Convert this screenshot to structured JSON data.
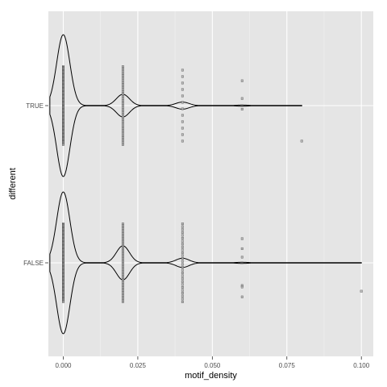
{
  "chart_data": {
    "type": "violin",
    "orientation": "horizontal",
    "xlabel": "motif_density",
    "ylabel": "different",
    "xlim": [
      -0.005,
      0.104
    ],
    "x_ticks": [
      0,
      0.025,
      0.05,
      0.075,
      0.1
    ],
    "x_tick_labels": [
      "0.000",
      "0.025",
      "0.050",
      "0.075",
      "0.100"
    ],
    "categories": [
      "TRUE",
      "FALSE"
    ],
    "grid": true,
    "colors": {
      "panel_background": "#e5e5e5",
      "grid_major": "#ffffff",
      "grid_minor": "#f2f2f2",
      "violin_outline": "#000000",
      "point_fill": "#b3b3b3",
      "point_stroke": "#333333"
    },
    "violins": [
      {
        "category": "TRUE",
        "x_max": 0.08,
        "density_profile": [
          {
            "x": 0.0,
            "half_width": 1.0
          },
          {
            "x": 0.02,
            "half_width": 0.16
          },
          {
            "x": 0.04,
            "half_width": 0.05
          },
          {
            "x": 0.06,
            "half_width": 0.008
          }
        ],
        "points": [
          {
            "x": 0.0,
            "count": 120,
            "y_spread": 0.55
          },
          {
            "x": 0.02,
            "count": 45,
            "y_spread": 0.55
          },
          {
            "x": 0.04,
            "count": 12,
            "y_spread": 0.5
          },
          {
            "x": 0.06,
            "count": 3,
            "y_offsets": [
              -0.35,
              -0.1,
              0.05
            ]
          },
          {
            "x": 0.08,
            "count": 1,
            "y_offsets": [
              0.5
            ]
          }
        ]
      },
      {
        "category": "FALSE",
        "x_max": 0.1,
        "density_profile": [
          {
            "x": 0.0,
            "half_width": 1.0
          },
          {
            "x": 0.02,
            "half_width": 0.24
          },
          {
            "x": 0.04,
            "half_width": 0.065
          },
          {
            "x": 0.06,
            "half_width": 0.008
          }
        ],
        "points": [
          {
            "x": 0.0,
            "count": 120,
            "y_spread": 0.55
          },
          {
            "x": 0.02,
            "count": 50,
            "y_spread": 0.55
          },
          {
            "x": 0.04,
            "count": 28,
            "y_spread": 0.55
          },
          {
            "x": 0.06,
            "count": 6,
            "y_offsets": [
              -0.34,
              -0.2,
              -0.08,
              0.32,
              0.34,
              0.48
            ]
          },
          {
            "x": 0.1,
            "count": 1,
            "y_offsets": [
              0.4
            ]
          }
        ]
      }
    ]
  }
}
